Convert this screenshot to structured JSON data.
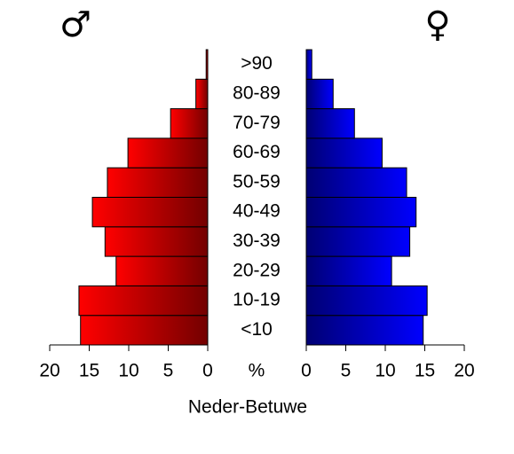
{
  "chart_data": {
    "type": "pyramid",
    "title": "Neder-Betuwe",
    "xlabel": "%",
    "categories": [
      "<10",
      "10-19",
      "20-29",
      "30-39",
      "40-49",
      "50-59",
      "60-69",
      "70-79",
      "80-89",
      ">90"
    ],
    "series": [
      {
        "name": "♂",
        "color": "#ff0000",
        "values": [
          16.1,
          16.3,
          11.6,
          13.0,
          14.6,
          12.7,
          10.1,
          4.7,
          1.5,
          0.2
        ]
      },
      {
        "name": "♀",
        "color": "#0000ff",
        "values": [
          14.8,
          15.3,
          10.8,
          13.1,
          13.9,
          12.7,
          9.6,
          6.1,
          3.4,
          0.7
        ]
      }
    ],
    "xlim": [
      0,
      20
    ],
    "xticks": [
      0,
      5,
      10,
      15,
      20
    ]
  }
}
